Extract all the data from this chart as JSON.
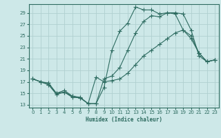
{
  "xlabel": "Humidex (Indice chaleur)",
  "ylabel": "",
  "background_color": "#cde8e8",
  "grid_color": "#b0d0d0",
  "line_color": "#2d6b60",
  "xlim": [
    -0.5,
    23.5
  ],
  "ylim": [
    12.5,
    30.5
  ],
  "yticks": [
    13,
    15,
    17,
    19,
    21,
    23,
    25,
    27,
    29
  ],
  "xticks": [
    0,
    1,
    2,
    3,
    4,
    5,
    6,
    7,
    8,
    9,
    10,
    11,
    12,
    13,
    14,
    15,
    16,
    17,
    18,
    19,
    20,
    21,
    22,
    23
  ],
  "line1_x": [
    0,
    1,
    2,
    3,
    4,
    5,
    6,
    7,
    8,
    9,
    10,
    11,
    12,
    13,
    14,
    15,
    16,
    17,
    18,
    19,
    20,
    21,
    22,
    23
  ],
  "line1_y": [
    17.5,
    17.0,
    16.5,
    14.8,
    15.2,
    14.3,
    14.2,
    13.2,
    13.2,
    16.0,
    22.5,
    25.8,
    27.2,
    30.0,
    29.5,
    29.5,
    28.8,
    29.0,
    29.0,
    28.8,
    26.0,
    21.5,
    20.5,
    20.8
  ],
  "line2_x": [
    0,
    1,
    2,
    3,
    4,
    5,
    6,
    7,
    8,
    9,
    10,
    11,
    12,
    13,
    14,
    15,
    16,
    17,
    18,
    19,
    20,
    21,
    22,
    23
  ],
  "line2_y": [
    17.5,
    17.0,
    16.5,
    15.0,
    15.2,
    14.5,
    14.2,
    13.2,
    13.2,
    17.5,
    18.0,
    19.5,
    22.5,
    25.5,
    27.5,
    28.5,
    28.3,
    29.0,
    28.8,
    26.0,
    24.5,
    22.0,
    20.5,
    20.8
  ],
  "line3_x": [
    0,
    1,
    2,
    3,
    4,
    5,
    6,
    7,
    8,
    9,
    10,
    11,
    12,
    13,
    14,
    15,
    16,
    17,
    18,
    19,
    20,
    21,
    22,
    23
  ],
  "line3_y": [
    17.5,
    17.0,
    16.8,
    15.0,
    15.5,
    14.5,
    14.3,
    13.2,
    17.8,
    17.0,
    17.2,
    17.5,
    18.5,
    20.0,
    21.5,
    22.5,
    23.5,
    24.5,
    25.5,
    26.0,
    25.0,
    22.0,
    20.5,
    20.8
  ]
}
